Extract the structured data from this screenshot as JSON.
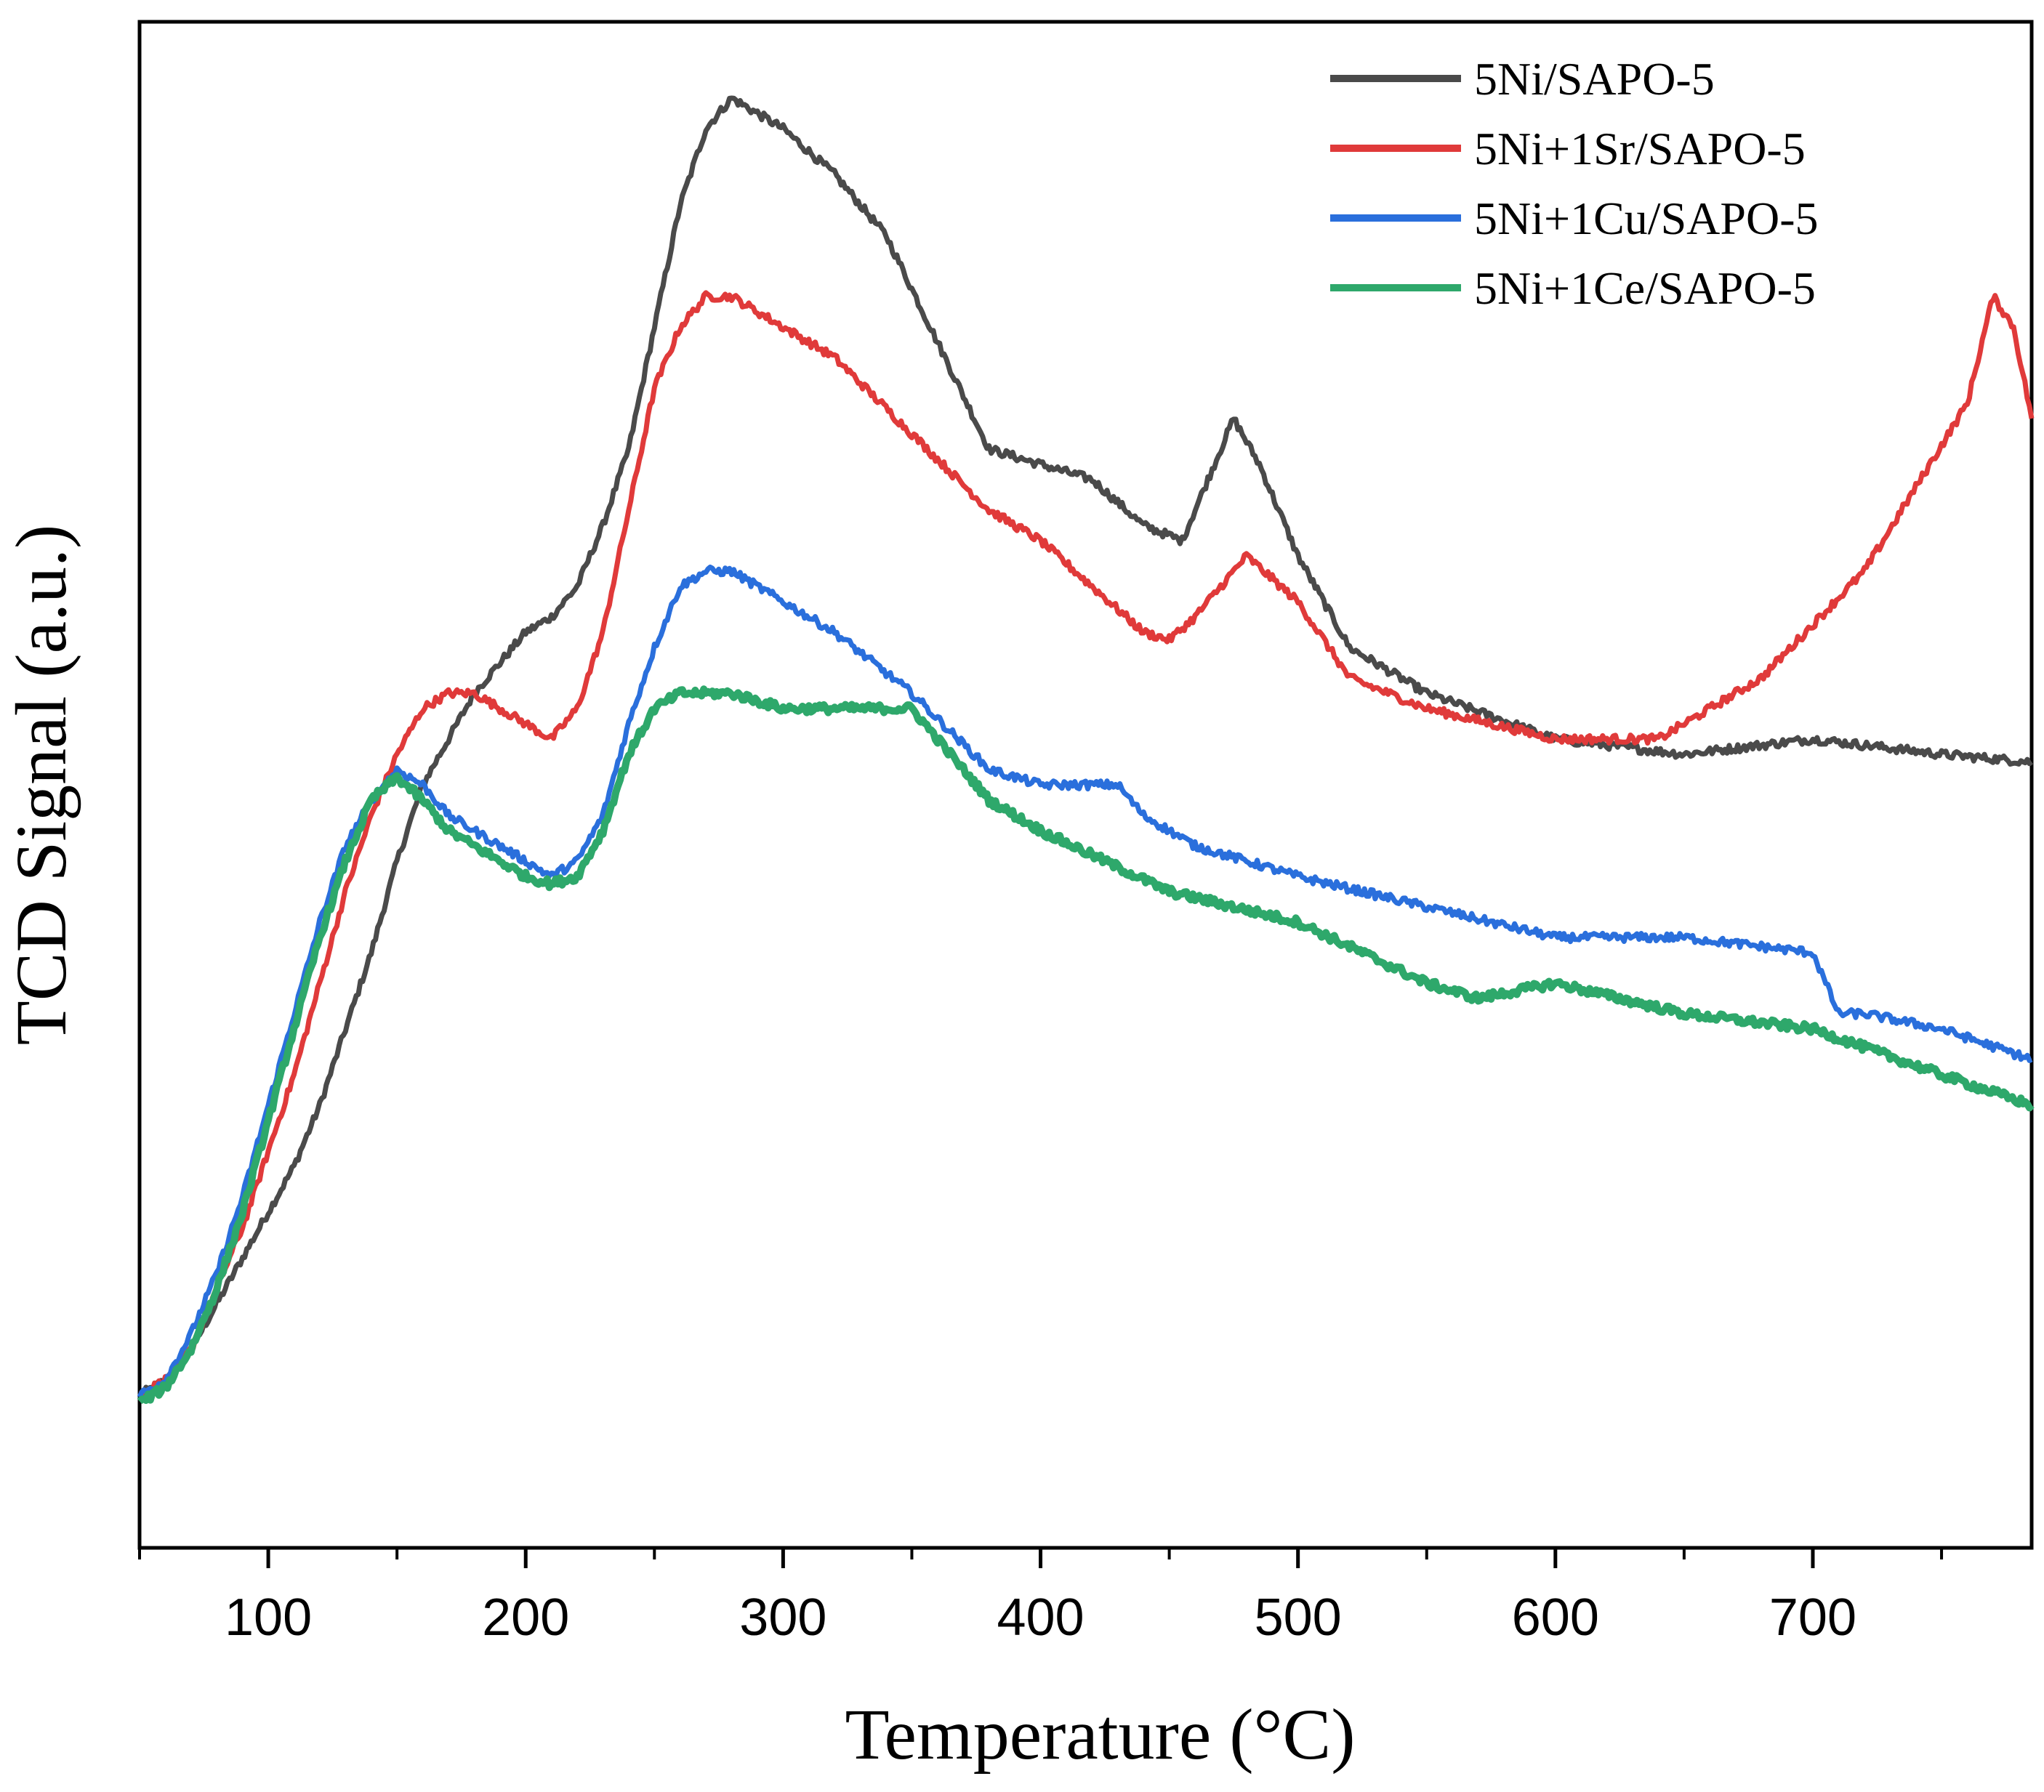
{
  "chart_data": {
    "type": "line",
    "title": "",
    "xlabel": "Temperature (°C)",
    "ylabel": "TCD Signal (a.u.)",
    "xlim": [
      50,
      785
    ],
    "ylim": [
      0,
      100
    ],
    "xticks": [
      100,
      200,
      300,
      400,
      500,
      600,
      700
    ],
    "xtick_labels": [
      "100",
      "200",
      "300",
      "400",
      "500",
      "600",
      "700"
    ],
    "yticks_shown": false,
    "grid": false,
    "legend_position": "top-right",
    "series": [
      {
        "name": "5Ni/SAPO-5",
        "color": "#4a4a4a",
        "x": [
          50,
          60,
          70,
          80,
          90,
          100,
          110,
          120,
          130,
          140,
          150,
          160,
          170,
          180,
          190,
          200,
          210,
          220,
          230,
          240,
          250,
          260,
          270,
          280,
          290,
          300,
          320,
          340,
          360,
          380,
          400,
          420,
          440,
          455,
          465,
          475,
          485,
          500,
          520,
          550,
          600,
          650,
          700,
          750,
          785
        ],
        "y": [
          10,
          11,
          13,
          16,
          19,
          22,
          25,
          29,
          34,
          39,
          45,
          50,
          53,
          56,
          58,
          60,
          61,
          63,
          67,
          72,
          80,
          88,
          93,
          95,
          94,
          93,
          90,
          86,
          79,
          72,
          71,
          70,
          67,
          66,
          70,
          74,
          71,
          65,
          59,
          56,
          53,
          52,
          53,
          52,
          51.5
        ]
      },
      {
        "name": "5Ni+1Sr/SAPO-5",
        "color": "#e03a3a",
        "x": [
          50,
          60,
          70,
          80,
          90,
          100,
          110,
          120,
          130,
          140,
          150,
          160,
          170,
          180,
          190,
          200,
          210,
          220,
          230,
          240,
          250,
          260,
          270,
          280,
          300,
          320,
          350,
          380,
          400,
          420,
          440,
          450,
          460,
          480,
          500,
          520,
          550,
          600,
          640,
          680,
          720,
          760,
          770,
          778,
          785
        ],
        "y": [
          10,
          11,
          13,
          17,
          21,
          26,
          31,
          37,
          43,
          48,
          52,
          55,
          56,
          56,
          55,
          54,
          53,
          55,
          60,
          68,
          76,
          80,
          82,
          82,
          80,
          78,
          73,
          68,
          66,
          63,
          60,
          59.5,
          61,
          65,
          62,
          57,
          55,
          53,
          53,
          57,
          64,
          75,
          82,
          80,
          74
        ]
      },
      {
        "name": "5Ni+1Cu/SAPO-5",
        "color": "#2a6fdc",
        "x": [
          50,
          60,
          70,
          80,
          90,
          100,
          110,
          120,
          130,
          140,
          150,
          160,
          170,
          180,
          190,
          200,
          210,
          220,
          230,
          240,
          250,
          260,
          270,
          280,
          300,
          320,
          350,
          380,
          400,
          420,
          430,
          440,
          460,
          480,
          500,
          550,
          600,
          650,
          700,
          710,
          720,
          750,
          785
        ],
        "y": [
          10,
          11,
          14,
          18,
          23,
          29,
          35,
          41,
          46,
          49,
          51,
          50,
          48,
          47,
          46,
          45,
          44,
          45,
          48,
          54,
          59,
          63,
          64,
          64,
          62,
          60,
          56,
          51,
          50,
          50,
          50,
          48,
          46,
          45,
          44,
          42,
          40,
          40,
          39,
          35,
          35,
          34,
          32
        ]
      },
      {
        "name": "5Ni+1Ce/SAPO-5",
        "color": "#2ea86b",
        "x": [
          50,
          60,
          70,
          80,
          90,
          100,
          110,
          120,
          130,
          140,
          150,
          160,
          170,
          180,
          190,
          200,
          210,
          220,
          230,
          240,
          250,
          260,
          270,
          280,
          300,
          320,
          350,
          370,
          380,
          400,
          450,
          500,
          550,
          570,
          600,
          650,
          700,
          750,
          785
        ],
        "y": [
          9.5,
          10.5,
          13,
          17,
          22,
          28,
          34,
          40,
          45,
          49,
          50.5,
          49,
          47,
          46,
          45,
          44,
          43.5,
          44,
          47,
          52,
          55,
          56,
          56,
          56,
          55,
          55,
          55,
          51,
          49,
          47,
          43,
          41,
          37,
          36,
          37,
          35,
          34,
          31,
          29
        ]
      }
    ]
  }
}
